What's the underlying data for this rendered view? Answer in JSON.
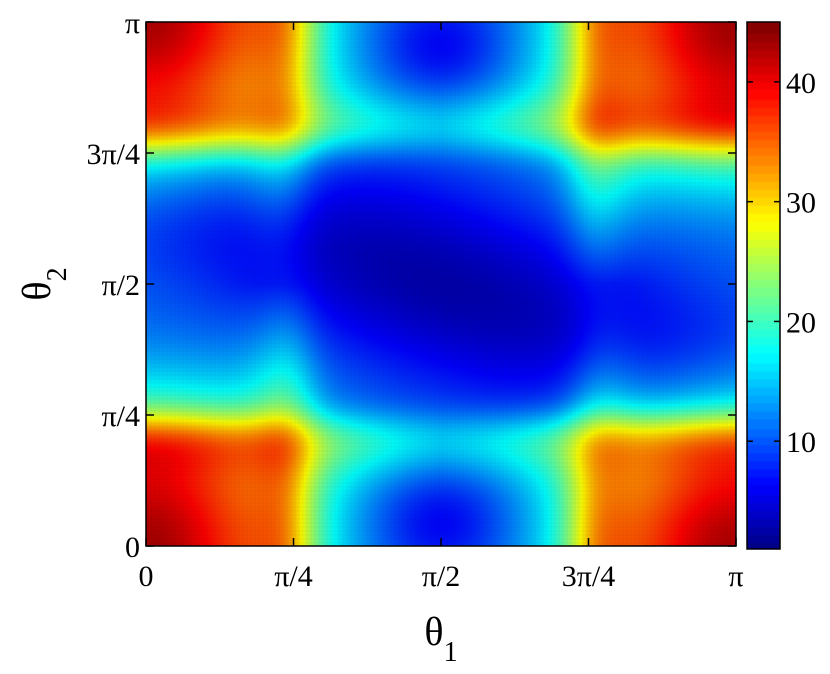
{
  "chart_data": {
    "type": "heatmap",
    "title": "",
    "xlabel": {
      "symbol": "θ",
      "subscript": "1"
    },
    "ylabel": {
      "symbol": "θ",
      "subscript": "2"
    },
    "xlim": [
      0,
      3.14159
    ],
    "ylim": [
      0,
      3.14159
    ],
    "x_ticks": [
      {
        "value": 0,
        "label": "0"
      },
      {
        "value": 0.7854,
        "label": "π/4"
      },
      {
        "value": 1.5708,
        "label": "π/2"
      },
      {
        "value": 2.3562,
        "label": "3π/4"
      },
      {
        "value": 3.14159,
        "label": "π"
      }
    ],
    "y_ticks": [
      {
        "value": 0,
        "label": "0"
      },
      {
        "value": 0.7854,
        "label": "π/4"
      },
      {
        "value": 1.5708,
        "label": "π/2"
      },
      {
        "value": 2.3562,
        "label": "3π/4"
      },
      {
        "value": 3.14159,
        "label": "π"
      }
    ],
    "colormap": "jet",
    "clim": [
      1,
      45
    ],
    "colorbar_ticks": [
      {
        "value": 10,
        "label": "10"
      },
      {
        "value": 20,
        "label": "20"
      },
      {
        "value": 30,
        "label": "30"
      },
      {
        "value": 40,
        "label": "40"
      }
    ],
    "colorbar_placement": "right",
    "grid": false,
    "z_approx": {
      "corners": 42,
      "center_min": 2,
      "light_cyan_ridges": 15,
      "yellow_bands": 28
    }
  }
}
